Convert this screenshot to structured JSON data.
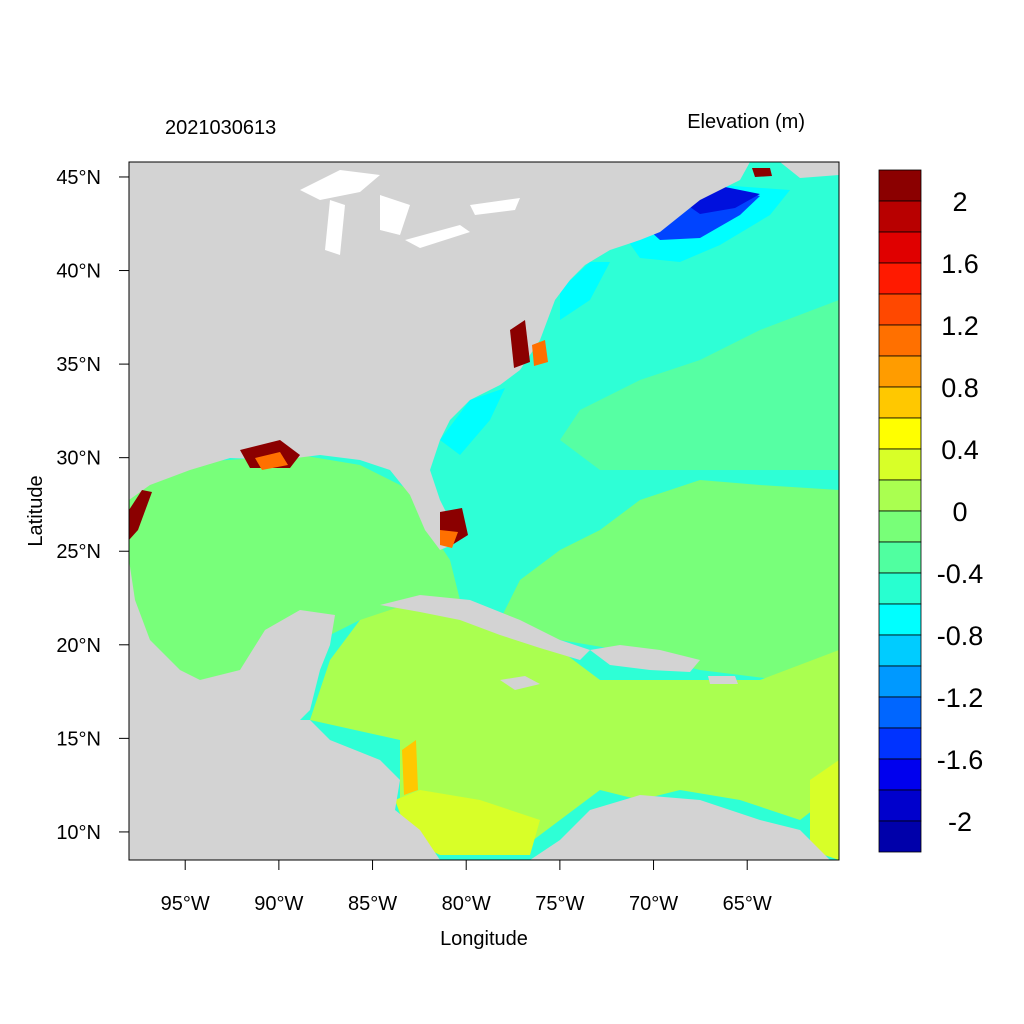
{
  "title_left": "2021030613",
  "title_right": "Elevation (m)",
  "axes": {
    "xlabel": "Longitude",
    "ylabel": "Latitude",
    "lon_ticks": [
      "95°W",
      "90°W",
      "85°W",
      "80°W",
      "75°W",
      "70°W",
      "65°W"
    ],
    "lon_values": [
      -95,
      -90,
      -85,
      -80,
      -75,
      -70,
      -65
    ],
    "lat_ticks": [
      "45°N",
      "40°N",
      "35°N",
      "30°N",
      "25°N",
      "20°N",
      "15°N",
      "10°N"
    ],
    "lat_values": [
      45,
      40,
      35,
      30,
      25,
      20,
      15,
      10
    ],
    "lon_range": [
      -98,
      -60.1
    ],
    "lat_range": [
      8.5,
      45.8
    ]
  },
  "colorbar": {
    "labels": [
      "2",
      "1.6",
      "1.2",
      "0.8",
      "0.4",
      "0",
      "-0.4",
      "-0.8",
      "-1.2",
      "-1.6",
      "-2"
    ],
    "colors": [
      "#8b0000",
      "#b80000",
      "#e00000",
      "#ff1a00",
      "#ff4800",
      "#ff7000",
      "#ff9c00",
      "#ffc800",
      "#ffff00",
      "#d8ff28",
      "#aaff50",
      "#78ff78",
      "#50ffa0",
      "#28ffd0",
      "#00ffff",
      "#00ccff",
      "#0099ff",
      "#0066ff",
      "#0033ff",
      "#0000ee",
      "#0000cc",
      "#0000aa"
    ]
  },
  "map_colors": {
    "land": "#d3d3d3",
    "water_ocean": "#2effd6",
    "water_zero": "#78ff7a",
    "water_caribbean": "#aaff50",
    "water_low": "#d8ff28",
    "water_cyan": "#00ffff",
    "water_blue": "#0044ff",
    "water_deep": "#0010dd",
    "surge_high": "#8b0000",
    "surge_mid": "#ff7000",
    "surge_yellow": "#ffc800",
    "lakes": "#ffffff"
  }
}
